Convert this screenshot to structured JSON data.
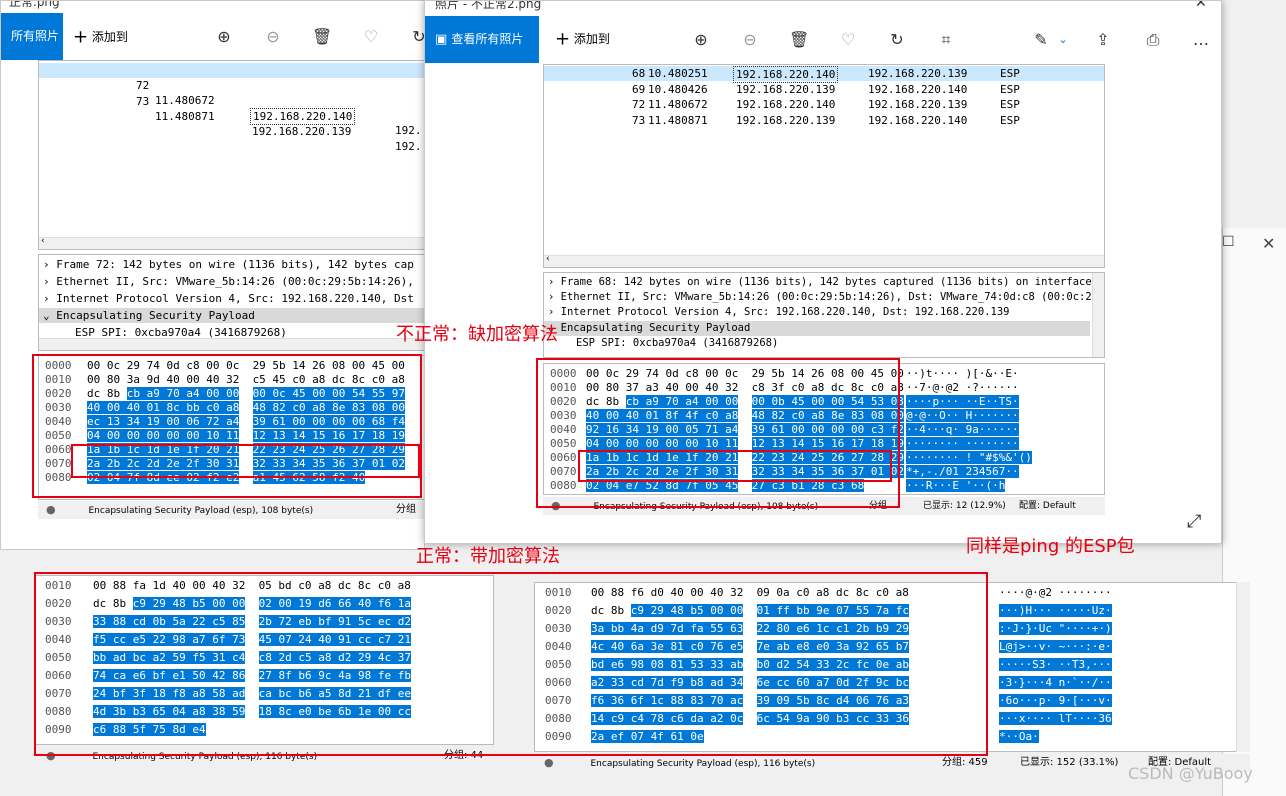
{
  "left_window": {
    "title": "正常.png",
    "view_all": "所有照片",
    "add_to": "添加到",
    "packets": [
      {
        "no": "72",
        "time": "11.480672",
        "src": "192.168.220.140",
        "dst": "192.",
        "selected": true
      },
      {
        "no": "73",
        "time": "11.480871",
        "src": "192.168.220.139",
        "dst": "192.",
        "selected": false
      }
    ],
    "details": [
      "Frame 72: 142 bytes on wire (1136 bits), 142 bytes cap",
      "Ethernet II, Src: VMware_5b:14:26 (00:0c:29:5b:14:26),",
      "Internet Protocol Version 4, Src: 192.168.220.140, Dst",
      "Encapsulating Security Payload",
      "ESP SPI: 0xcba970a4 (3416879268)"
    ],
    "hex_offsets": [
      "0000",
      "0010",
      "0020",
      "0030",
      "0040",
      "0050",
      "0060",
      "0070",
      "0080"
    ],
    "hex_lines": [
      "00 0c 29 74 0d c8 00 0c  29 5b 14 26 08 00 45 00",
      "00 80 3a 9d 40 00 40 32  c5 45 c0 a8 dc 8c c0 a8",
      "dc 8b cb a9 70 a4 00 00  00 0c 45 00 00 54 55 97",
      "40 00 40 01 8c bb c0 a8  48 82 c0 a8 8e 83 08 00",
      "ec 13 34 19 00 06 72 a4  39 61 00 00 00 00 68 f4",
      "04 00 00 00 00 00 10 11  12 13 14 15 16 17 18 19",
      "1a 1b 1c 1d 1e 1f 20 21  22 23 24 25 26 27 28 29",
      "2a 2b 2c 2d 2e 2f 30 31  32 33 34 35 36 37 01 02",
      "02 04 7f 8d ee 02 f2 e2  a1 45 62 58 f2 40"
    ],
    "status_text": "Encapsulating Security Payload (esp), 108 byte(s)",
    "status_group": "分组"
  },
  "right_window": {
    "title": "照片 - 不正常2.png",
    "view_all": "查看所有照片",
    "add_to": "添加到",
    "packets": [
      {
        "no": "68",
        "time": "10.480251",
        "src": "192.168.220.140",
        "dst": "192.168.220.139",
        "proto": "ESP",
        "selected": true
      },
      {
        "no": "69",
        "time": "10.480426",
        "src": "192.168.220.139",
        "dst": "192.168.220.140",
        "proto": "ESP",
        "selected": false
      },
      {
        "no": "72",
        "time": "11.480672",
        "src": "192.168.220.140",
        "dst": "192.168.220.139",
        "proto": "ESP",
        "selected": false
      },
      {
        "no": "73",
        "time": "11.480871",
        "src": "192.168.220.139",
        "dst": "192.168.220.140",
        "proto": "ESP",
        "selected": false
      }
    ],
    "details": [
      "Frame 68: 142 bytes on wire (1136 bits), 142 bytes captured (1136 bits) on interface",
      "Ethernet II, Src: VMware_5b:14:26 (00:0c:29:5b:14:26), Dst: VMware_74:0d:c8 (00:0c:2",
      "Internet Protocol Version 4, Src: 192.168.220.140, Dst: 192.168.220.139",
      "Encapsulating Security Payload",
      "ESP SPI: 0xcba970a4 (3416879268)"
    ],
    "hex_offsets": [
      "0000",
      "0010",
      "0020",
      "0030",
      "0040",
      "0050",
      "0060",
      "0070",
      "0080"
    ],
    "hex_lines": [
      "00 0c 29 74 0d c8 00 0c  29 5b 14 26 08 00 45 00",
      "00 80 37 a3 40 00 40 32  c8 3f c0 a8 dc 8c c0 a8",
      "dc 8b cb a9 70 a4 00 00  00 0b 45 00 00 54 53 03",
      "40 00 40 01 8f 4f c0 a8  48 82 c0 a8 8e 83 08 00",
      "92 16 34 19 00 05 71 a4  39 61 00 00 00 00 c3 f2",
      "04 00 00 00 00 00 10 11  12 13 14 15 16 17 18 19",
      "1a 1b 1c 1d 1e 1f 20 21  22 23 24 25 26 27 28 29",
      "2a 2b 2c 2d 2e 2f 30 31  32 33 34 35 36 37 01 02",
      "02 04 e7 52 8d 7f 05 45  27 c3 b1 28 c3 68"
    ],
    "ascii_lines": [
      "··)t···· )[·&··E·",
      "··7·@·@2 ·?······",
      "····p··· ··E··TS·",
      "@·@··O·· H·······",
      "··4···q· 9a······",
      "········ ········",
      "········ ! \"#$%&'()",
      "*+,-./01 234567··",
      "···R···E '··(·h"
    ],
    "status_text": "Encapsulating Security Payload (esp), 108 byte(s)",
    "status_group": "分组",
    "status_shown": "已显示: 12 (12.9%)",
    "status_profile": "配置: Default"
  },
  "bottom_left": {
    "hex_offsets": [
      "0010",
      "0020",
      "0030",
      "0040",
      "0050",
      "0060",
      "0070",
      "0080",
      "0090"
    ],
    "hex_lines": [
      "00 88 fa 1d 40 00 40 32  05 bd c0 a8 dc 8c c0 a8",
      "dc 8b c9 29 48 b5 00 00  02 00 19 d6 66 40 f6 1a",
      "33 88 cd 0b 5a 22 c5 85  2b 72 eb bf 91 5c ec d2",
      "f5 cc e5 22 98 a7 6f 73  45 07 24 40 91 cc c7 21",
      "bb ad bc a2 59 f5 31 c4  c8 2d c5 a8 d2 29 4c 37",
      "74 ca e6 bf e1 50 42 86  27 8f b6 9c 4a 98 fe fb",
      "24 bf 3f 18 f8 a8 58 ad  ca bc b6 a5 8d 21 df ee",
      "4d 3b b3 65 04 a8 38 59  18 8c e0 be 6b 1e 00 cc",
      "c6 88 5f 75 8d e4"
    ],
    "status_text": "Encapsulating Security Payload (esp), 116 byte(s)",
    "status_group": "分组: 44"
  },
  "bottom_right": {
    "hex_offsets": [
      "0010",
      "0020",
      "0030",
      "0040",
      "0050",
      "0060",
      "0070",
      "0080",
      "0090"
    ],
    "hex_lines": [
      "00 88 f6 d0 40 00 40 32  09 0a c0 a8 dc 8c c0 a8",
      "dc 8b c9 29 48 b5 00 00  01 ff bb 9e 07 55 7a fc",
      "3a bb 4a d9 7d fa 55 63  22 80 e6 1c c1 2b b9 29",
      "4c 40 6a 3e 81 c0 76 e5  7e ab e8 e0 3a 92 65 b7",
      "bd e6 98 08 81 53 33 ab  b0 d2 54 33 2c fc 0e ab",
      "a2 33 cd 7d f9 b8 ad 34  6e cc 60 a7 0d 2f 9c bc",
      "f6 36 6f 1c 88 83 70 ac  39 09 5b 8c d4 06 76 a3",
      "14 c9 c4 78 c6 da a2 0c  6c 54 9a 90 b3 cc 33 36",
      "2a ef 07 4f 61 0e"
    ],
    "ascii_lines": [
      "····@·@2 ········",
      "···)H··· ·····Uz·",
      ":·J·}·Uc \"····+·)",
      "L@j>··v· ~···:·e·",
      "·····S3· ··T3,···",
      "·3·}···4 n·`··/··",
      "·6o···p· 9·[···v·",
      "···x···· lT····36",
      "*··Oa·"
    ],
    "status_text": "Encapsulating Security Payload (esp), 116 byte(s)",
    "status_group": "分组: 459",
    "status_shown": "已显示: 152 (33.1%)",
    "status_profile": "配置: Default"
  },
  "annotations": {
    "abnormal": "不正常：缺加密算法",
    "normal": "正常：带加密算法",
    "same": "同样是ping 的ESP包"
  },
  "watermark": "CSDN @YuBooy",
  "colors": {
    "highlight": "#0078d7",
    "annotation": "#e60012",
    "selected_row": "#cce8ff"
  }
}
